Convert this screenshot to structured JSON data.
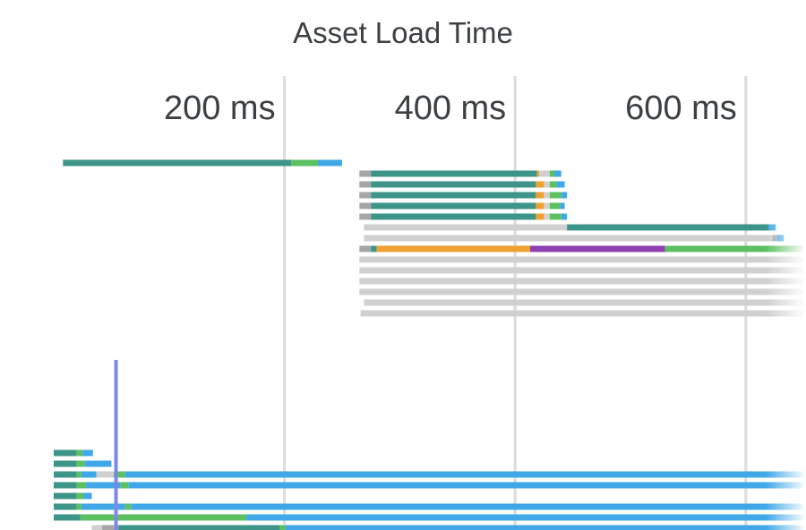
{
  "chart_data": {
    "type": "waterfall",
    "title": "Asset Load Time",
    "x_axis": {
      "unit": "ms",
      "ticks": [
        {
          "value": 200,
          "label": "200 ms"
        },
        {
          "value": 400,
          "label": "400 ms"
        },
        {
          "value": 600,
          "label": "600 ms"
        }
      ],
      "range": [
        0,
        650
      ],
      "grid": true
    },
    "colors": {
      "queued": "#d0d0d0",
      "stalled": "#a6a6a6",
      "dns": "#3d9488",
      "connect": "#f0a030",
      "ssl": "#8e3fb0",
      "request": "#5cc060",
      "download": "#40a8e8"
    },
    "marker_time_ms": 54,
    "rows": [
      {
        "row": 0,
        "segments": [
          [
            "dns",
            8,
            206
          ],
          [
            "request",
            206,
            229
          ],
          [
            "download",
            229,
            250
          ]
        ]
      },
      {
        "row": 1,
        "segments": [
          [
            "stalled",
            265,
            275
          ],
          [
            "dns",
            275,
            419
          ],
          [
            "connect",
            419,
            421
          ],
          [
            "queued",
            421,
            430
          ],
          [
            "request",
            430,
            434
          ],
          [
            "download",
            434,
            440
          ]
        ]
      },
      {
        "row": 2,
        "segments": [
          [
            "stalled",
            265,
            275
          ],
          [
            "dns",
            275,
            418
          ],
          [
            "connect",
            418,
            425
          ],
          [
            "queued",
            425,
            430
          ],
          [
            "request",
            430,
            436
          ],
          [
            "download",
            436,
            443
          ]
        ]
      },
      {
        "row": 3,
        "segments": [
          [
            "stalled",
            265,
            275
          ],
          [
            "dns",
            275,
            418
          ],
          [
            "connect",
            418,
            425
          ],
          [
            "queued",
            425,
            430
          ],
          [
            "request",
            430,
            440
          ],
          [
            "download",
            440,
            445
          ]
        ]
      },
      {
        "row": 4,
        "segments": [
          [
            "stalled",
            265,
            275
          ],
          [
            "dns",
            275,
            418
          ],
          [
            "connect",
            418,
            425
          ],
          [
            "queued",
            425,
            430
          ],
          [
            "request",
            430,
            439
          ],
          [
            "download",
            439,
            443
          ]
        ]
      },
      {
        "row": 5,
        "segments": [
          [
            "stalled",
            265,
            275
          ],
          [
            "dns",
            275,
            418
          ],
          [
            "connect",
            418,
            425
          ],
          [
            "queued",
            425,
            430
          ],
          [
            "request",
            430,
            440
          ],
          [
            "download",
            440,
            445
          ]
        ]
      },
      {
        "row": 6,
        "segments": [
          [
            "queued",
            269,
            445
          ],
          [
            "dns",
            445,
            620
          ],
          [
            "download",
            620,
            626
          ]
        ]
      },
      {
        "row": 7,
        "segments": [
          [
            "queued",
            269,
            623
          ],
          [
            "stalled",
            623,
            627
          ],
          [
            "download",
            627,
            633
          ]
        ]
      },
      {
        "row": 8,
        "segments": [
          [
            "stalled",
            265,
            275
          ],
          [
            "dns",
            275,
            280
          ],
          [
            "connect",
            280,
            413
          ],
          [
            "ssl",
            413,
            530
          ],
          [
            "request",
            530,
            650
          ]
        ]
      },
      {
        "row": 9,
        "segments": [
          [
            "queued",
            265,
            650
          ]
        ]
      },
      {
        "row": 10,
        "segments": [
          [
            "queued",
            265,
            650
          ]
        ]
      },
      {
        "row": 11,
        "segments": [
          [
            "queued",
            265,
            650
          ]
        ]
      },
      {
        "row": 12,
        "segments": [
          [
            "queued",
            265,
            650
          ]
        ]
      },
      {
        "row": 13,
        "segments": [
          [
            "queued",
            269,
            650
          ]
        ]
      },
      {
        "row": 14,
        "segments": [
          [
            "queued",
            266,
            650
          ]
        ]
      },
      {
        "row": 27,
        "segments": [
          [
            "dns",
            0,
            20
          ],
          [
            "request",
            20,
            25
          ],
          [
            "download",
            25,
            34
          ]
        ]
      },
      {
        "row": 28,
        "segments": [
          [
            "dns",
            0,
            20
          ],
          [
            "request",
            20,
            27
          ],
          [
            "download",
            27,
            50
          ]
        ]
      },
      {
        "row": 29,
        "segments": [
          [
            "dns",
            0,
            20
          ],
          [
            "request",
            20,
            24
          ],
          [
            "download",
            24,
            37
          ],
          [
            "queued",
            37,
            52
          ],
          [
            "request",
            52,
            62
          ],
          [
            "download",
            62,
            650
          ]
        ]
      },
      {
        "row": 30,
        "segments": [
          [
            "dns",
            0,
            20
          ],
          [
            "request",
            20,
            28
          ],
          [
            "download",
            28,
            58
          ],
          [
            "request",
            58,
            65
          ],
          [
            "download",
            65,
            650
          ]
        ]
      },
      {
        "row": 31,
        "segments": [
          [
            "dns",
            0,
            20
          ],
          [
            "request",
            20,
            26
          ],
          [
            "download",
            26,
            33
          ]
        ]
      },
      {
        "row": 32,
        "segments": [
          [
            "dns",
            0,
            20
          ],
          [
            "request",
            20,
            24
          ],
          [
            "download",
            24,
            62
          ],
          [
            "request",
            62,
            67
          ],
          [
            "download",
            67,
            650
          ]
        ]
      },
      {
        "row": 33,
        "segments": [
          [
            "dns",
            0,
            23
          ],
          [
            "request",
            23,
            167
          ],
          [
            "download",
            167,
            650
          ]
        ]
      },
      {
        "row": 34,
        "segments": [
          [
            "queued",
            33,
            42
          ],
          [
            "stalled",
            42,
            56
          ],
          [
            "dns",
            56,
            196
          ],
          [
            "request",
            196,
            201
          ],
          [
            "download",
            201,
            650
          ]
        ]
      }
    ]
  }
}
